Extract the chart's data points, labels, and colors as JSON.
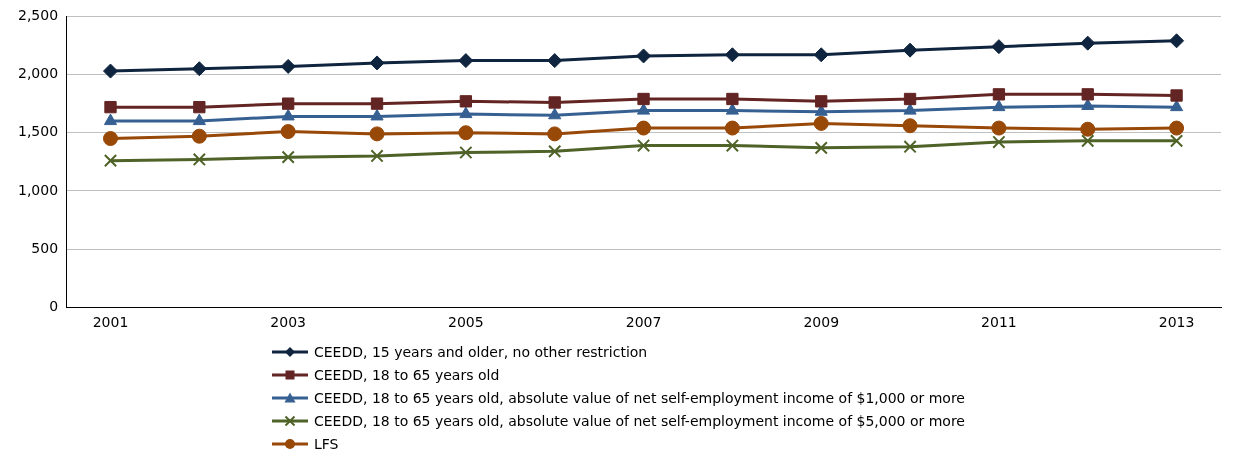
{
  "chart_data": {
    "type": "line",
    "categories": [
      "2001",
      null,
      "2003",
      null,
      "2005",
      null,
      "2007",
      null,
      "2009",
      null,
      "2011",
      null,
      "2013"
    ],
    "series": [
      {
        "name": "CEEDD, 15 years and older, no other restriction",
        "color": "#0f243e",
        "marker": "diamond",
        "values": [
          2030,
          2050,
          2070,
          2100,
          2120,
          2120,
          2160,
          2170,
          2170,
          2210,
          2240,
          2270,
          2290
        ]
      },
      {
        "name": "CEEDD, 18 to 65 years old",
        "color": "#632523",
        "marker": "square",
        "values": [
          1720,
          1720,
          1750,
          1750,
          1770,
          1760,
          1790,
          1790,
          1770,
          1790,
          1830,
          1830,
          1820
        ]
      },
      {
        "name": "CEEDD, 18 to 65 years old, absolute value of net self-employment income of $1,000 or more",
        "color": "#366092",
        "marker": "triangle",
        "values": [
          1600,
          1600,
          1640,
          1640,
          1660,
          1650,
          1690,
          1690,
          1680,
          1690,
          1720,
          1730,
          1720
        ]
      },
      {
        "name": "CEEDD, 18 to 65 years old, absolute value of net self-employment income of $5,000 or more",
        "color": "#4f6228",
        "marker": "cross",
        "values": [
          1260,
          1270,
          1290,
          1300,
          1330,
          1340,
          1390,
          1390,
          1370,
          1380,
          1420,
          1430,
          1430
        ]
      },
      {
        "name": "LFS",
        "color": "#984807",
        "marker": "circle",
        "values": [
          1450,
          1470,
          1510,
          1490,
          1500,
          1490,
          1540,
          1540,
          1580,
          1560,
          1540,
          1530,
          1540
        ]
      }
    ],
    "ylim": [
      0,
      2500
    ],
    "yticks": [
      {
        "value": 0,
        "label": "0"
      },
      {
        "value": 500,
        "label": "500"
      },
      {
        "value": 1000,
        "label": "1,000"
      },
      {
        "value": 1500,
        "label": "1,500"
      },
      {
        "value": 2000,
        "label": "2,000"
      },
      {
        "value": 2500,
        "label": "2,500"
      }
    ],
    "grid": "y",
    "legend": "bottom"
  }
}
